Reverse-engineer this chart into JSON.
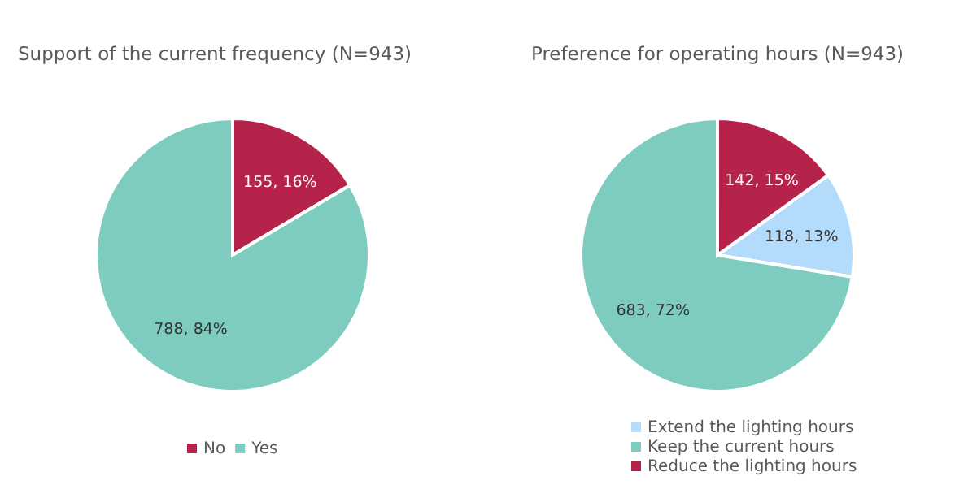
{
  "chart_data": [
    {
      "type": "pie",
      "title": "Support of the current frequency (N=943)",
      "categories": [
        "No",
        "Yes"
      ],
      "values": [
        155,
        788
      ],
      "colors": [
        "#b5234a",
        "#7dccbf"
      ],
      "value_labels": [
        "155, 16%",
        "788, 84%"
      ],
      "legend": "bottom"
    },
    {
      "type": "pie",
      "title": "Preference for operating hours (N=943)",
      "categories": [
        "Extend the lighting hours",
        "Keep the current hours",
        "Reduce the lighting hours"
      ],
      "values": [
        118,
        683,
        142
      ],
      "colors": [
        "#b3dbfb",
        "#7dccbf",
        "#b5234a"
      ],
      "value_labels": [
        "118, 13%",
        "683, 72%",
        "142, 15%"
      ],
      "legend": "bottom"
    }
  ]
}
